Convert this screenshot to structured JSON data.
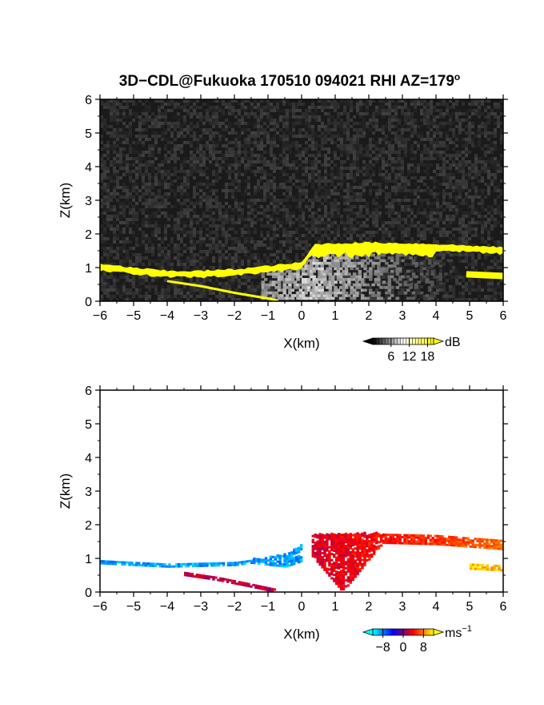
{
  "figure": {
    "title_main": "3D−CDL@Fukuoka 170510 094021 RHI AZ=179",
    "title_degree": "o"
  },
  "chart_data": [
    {
      "type": "heatmap",
      "name": "backscatter-intensity",
      "xlabel": "X(km)",
      "ylabel": "Z(km)",
      "xlim": [
        -6,
        6
      ],
      "ylim": [
        0,
        6
      ],
      "xticks": [
        "−6",
        "−5",
        "−4",
        "−3",
        "−2",
        "−1",
        "0",
        "1",
        "2",
        "3",
        "4",
        "5",
        "6"
      ],
      "yticks": [
        "0",
        "1",
        "2",
        "3",
        "4",
        "5",
        "6"
      ],
      "background": "noise-gray",
      "colorbar": {
        "unit": "dB",
        "ticks": [
          "6",
          "12",
          "18"
        ],
        "tick_values": [
          6,
          12,
          18
        ],
        "range": [
          0,
          20
        ],
        "colors": [
          "#000000",
          "#ffffff",
          "#ffff00"
        ]
      },
      "features": [
        {
          "label": "aerosol-layer-top",
          "x": [
            -6,
            -4,
            -3,
            -2,
            -1,
            0,
            0.4,
            2,
            4,
            6
          ],
          "z": [
            1.05,
            0.85,
            0.85,
            0.9,
            1.0,
            1.1,
            1.65,
            1.7,
            1.65,
            1.55
          ],
          "color": "#ffff00"
        },
        {
          "label": "ground-clutter-arc",
          "x": [
            -4,
            -3,
            -2,
            -1,
            -0.7
          ],
          "z": [
            0.6,
            0.45,
            0.25,
            0.08,
            0.02
          ],
          "color": "#ffff00"
        },
        {
          "label": "right-lower-patch",
          "x": [
            4.9,
            6
          ],
          "z": [
            0.8,
            0.75
          ],
          "color": "#ffff00"
        }
      ]
    },
    {
      "type": "heatmap",
      "name": "doppler-velocity",
      "xlabel": "X(km)",
      "ylabel": "Z(km)",
      "xlim": [
        -6,
        6
      ],
      "ylim": [
        0,
        6
      ],
      "xticks": [
        "−6",
        "−5",
        "−4",
        "−3",
        "−2",
        "−1",
        "0",
        "1",
        "2",
        "3",
        "4",
        "5",
        "6"
      ],
      "yticks": [
        "0",
        "1",
        "2",
        "3",
        "4",
        "5",
        "6"
      ],
      "background": "white",
      "colorbar": {
        "unit": "ms",
        "unit_exponent": "−1",
        "ticks": [
          "−8",
          "0",
          "8"
        ],
        "tick_values": [
          -8,
          0,
          8
        ],
        "range": [
          -12,
          12
        ],
        "colors": [
          "#00ffff",
          "#0000ff",
          "#ff0000",
          "#ffff00"
        ]
      },
      "features": [
        {
          "label": "left-approaching-layer",
          "x": [
            -6,
            -4,
            -2,
            -0.5,
            0
          ],
          "z": [
            0.95,
            0.85,
            0.9,
            1.1,
            1.4
          ],
          "velocity": -9
        },
        {
          "label": "right-receding-layer",
          "x": [
            0.3,
            2,
            4,
            6
          ],
          "z": [
            1.7,
            1.75,
            1.7,
            1.55
          ],
          "velocity": 4
        },
        {
          "label": "far-right-patch",
          "x": [
            5,
            6
          ],
          "z": [
            0.85,
            0.8
          ],
          "velocity": 10
        },
        {
          "label": "red-arc",
          "x": [
            -3.5,
            -2.5,
            -1.5,
            -0.8
          ],
          "z": [
            0.55,
            0.4,
            0.2,
            0.05
          ],
          "velocity": 2
        }
      ]
    }
  ]
}
